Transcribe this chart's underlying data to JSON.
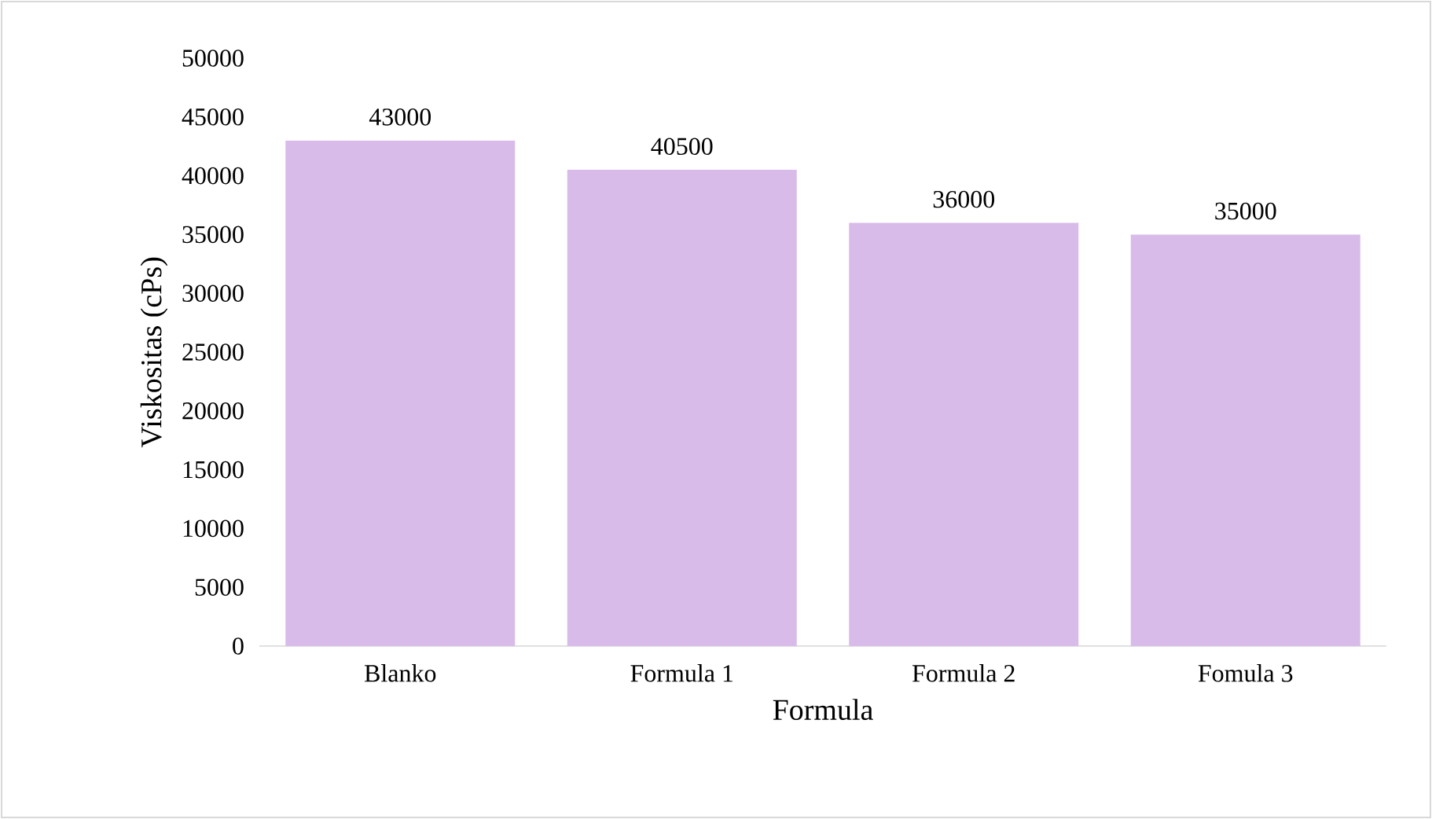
{
  "chart_data": {
    "type": "bar",
    "xlabel": "Formula",
    "ylabel": "Viskositas (cPs)",
    "categories": [
      "Blanko",
      "Formula 1",
      "Formula 2",
      "Fomula 3"
    ],
    "values": [
      43000,
      40500,
      36000,
      35000
    ],
    "color": "#d9bbea",
    "data_labels": true,
    "ylim": [
      0,
      50000
    ],
    "yticks": [
      0,
      5000,
      10000,
      15000,
      20000,
      25000,
      30000,
      35000,
      40000,
      45000,
      50000
    ]
  }
}
